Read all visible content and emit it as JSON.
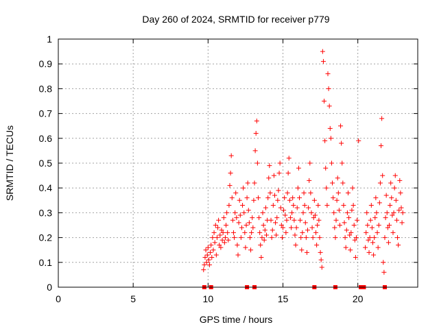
{
  "chart_data": {
    "type": "scatter",
    "title": "Day 260 of 2024, SRMTID for receiver p779",
    "xlabel": "GPS time / hours",
    "ylabel": "SRMTID / TECUs",
    "xlim": [
      0,
      24
    ],
    "ylim": [
      0,
      1
    ],
    "xticks": [
      0,
      5,
      10,
      15,
      20
    ],
    "xtick_labels": [
      "0",
      "5",
      "10",
      "15",
      "20"
    ],
    "yticks": [
      0,
      0.1,
      0.2,
      0.3,
      0.4,
      0.5,
      0.6,
      0.7,
      0.8,
      0.9,
      1
    ],
    "ytick_labels": [
      "0",
      "0.1",
      "0.2",
      "0.3",
      "0.4",
      "0.5",
      "0.6",
      "0.7",
      "0.8",
      "0.9",
      "1"
    ],
    "grid": true,
    "marker": "+",
    "color": "#ff0000",
    "series": [
      {
        "name": "SRMTID",
        "points": [
          [
            9.7,
            0.07
          ],
          [
            9.75,
            0.09
          ],
          [
            9.8,
            0.12
          ],
          [
            9.85,
            0.15
          ],
          [
            9.9,
            0.1
          ],
          [
            9.95,
            0.13
          ],
          [
            10.0,
            0.16
          ],
          [
            10.05,
            0.11
          ],
          [
            10.1,
            0.09
          ],
          [
            10.15,
            0.14
          ],
          [
            10.2,
            0.17
          ],
          [
            10.25,
            0.12
          ],
          [
            10.3,
            0.2
          ],
          [
            10.35,
            0.15
          ],
          [
            10.4,
            0.22
          ],
          [
            10.45,
            0.18
          ],
          [
            10.5,
            0.25
          ],
          [
            10.55,
            0.13
          ],
          [
            10.6,
            0.2
          ],
          [
            10.65,
            0.24
          ],
          [
            10.7,
            0.27
          ],
          [
            10.75,
            0.17
          ],
          [
            10.8,
            0.21
          ],
          [
            10.85,
            0.16
          ],
          [
            10.9,
            0.23
          ],
          [
            10.95,
            0.19
          ],
          [
            11.0,
            0.22
          ],
          [
            11.05,
            0.28
          ],
          [
            11.1,
            0.18
          ],
          [
            11.15,
            0.2
          ],
          [
            11.2,
            0.25
          ],
          [
            11.25,
            0.3
          ],
          [
            11.3,
            0.22
          ],
          [
            11.35,
            0.19
          ],
          [
            11.4,
            0.33
          ],
          [
            11.45,
            0.41
          ],
          [
            11.5,
            0.46
          ],
          [
            11.55,
            0.53
          ],
          [
            11.6,
            0.36
          ],
          [
            11.65,
            0.27
          ],
          [
            11.7,
            0.22
          ],
          [
            11.75,
            0.2
          ],
          [
            11.8,
            0.3
          ],
          [
            11.85,
            0.38
          ],
          [
            11.9,
            0.28
          ],
          [
            11.95,
            0.17
          ],
          [
            12.0,
            0.13
          ],
          [
            12.05,
            0.26
          ],
          [
            12.1,
            0.35
          ],
          [
            12.15,
            0.29
          ],
          [
            12.2,
            0.2
          ],
          [
            12.25,
            0.24
          ],
          [
            12.3,
            0.33
          ],
          [
            12.35,
            0.4
          ],
          [
            12.4,
            0.3
          ],
          [
            12.45,
            0.22
          ],
          [
            12.5,
            0.16
          ],
          [
            12.55,
            0.25
          ],
          [
            12.6,
            0.36
          ],
          [
            12.65,
            0.42
          ],
          [
            12.7,
            0.31
          ],
          [
            12.75,
            0.26
          ],
          [
            12.8,
            0.2
          ],
          [
            12.85,
            0.15
          ],
          [
            12.9,
            0.22
          ],
          [
            12.95,
            0.28
          ],
          [
            13.0,
            0.24
          ],
          [
            13.05,
            0.35
          ],
          [
            13.1,
            0.42
          ],
          [
            13.15,
            0.55
          ],
          [
            13.2,
            0.62
          ],
          [
            13.25,
            0.67
          ],
          [
            13.3,
            0.5
          ],
          [
            13.35,
            0.36
          ],
          [
            13.4,
            0.28
          ],
          [
            13.45,
            0.22
          ],
          [
            13.5,
            0.17
          ],
          [
            13.55,
            0.12
          ],
          [
            13.6,
            0.2
          ],
          [
            13.65,
            0.3
          ],
          [
            13.7,
            0.25
          ],
          [
            13.75,
            0.19
          ],
          [
            13.8,
            0.23
          ],
          [
            13.85,
            0.32
          ],
          [
            13.9,
            0.21
          ],
          [
            13.95,
            0.27
          ],
          [
            14.0,
            0.36
          ],
          [
            14.05,
            0.44
          ],
          [
            14.1,
            0.49
          ],
          [
            14.15,
            0.38
          ],
          [
            14.2,
            0.27
          ],
          [
            14.25,
            0.2
          ],
          [
            14.3,
            0.23
          ],
          [
            14.35,
            0.33
          ],
          [
            14.4,
            0.45
          ],
          [
            14.45,
            0.37
          ],
          [
            14.5,
            0.26
          ],
          [
            14.55,
            0.21
          ],
          [
            14.6,
            0.28
          ],
          [
            14.65,
            0.35
          ],
          [
            14.7,
            0.39
          ],
          [
            14.75,
            0.46
          ],
          [
            14.8,
            0.5
          ],
          [
            14.85,
            0.32
          ],
          [
            14.9,
            0.25
          ],
          [
            14.95,
            0.2
          ],
          [
            15.0,
            0.24
          ],
          [
            15.05,
            0.31
          ],
          [
            15.1,
            0.36
          ],
          [
            15.15,
            0.29
          ],
          [
            15.2,
            0.22
          ],
          [
            15.25,
            0.27
          ],
          [
            15.3,
            0.38
          ],
          [
            15.35,
            0.46
          ],
          [
            15.4,
            0.52
          ],
          [
            15.45,
            0.35
          ],
          [
            15.5,
            0.28
          ],
          [
            15.55,
            0.24
          ],
          [
            15.6,
            0.3
          ],
          [
            15.65,
            0.36
          ],
          [
            15.7,
            0.33
          ],
          [
            15.75,
            0.27
          ],
          [
            15.8,
            0.21
          ],
          [
            15.85,
            0.17
          ],
          [
            15.9,
            0.24
          ],
          [
            15.95,
            0.32
          ],
          [
            16.0,
            0.4
          ],
          [
            16.05,
            0.48
          ],
          [
            16.1,
            0.36
          ],
          [
            16.15,
            0.27
          ],
          [
            16.2,
            0.2
          ],
          [
            16.25,
            0.15
          ],
          [
            16.3,
            0.22
          ],
          [
            16.35,
            0.3
          ],
          [
            16.4,
            0.38
          ],
          [
            16.45,
            0.33
          ],
          [
            16.5,
            0.26
          ],
          [
            16.55,
            0.2
          ],
          [
            16.6,
            0.14
          ],
          [
            16.65,
            0.23
          ],
          [
            16.7,
            0.32
          ],
          [
            16.75,
            0.43
          ],
          [
            16.8,
            0.5
          ],
          [
            16.85,
            0.38
          ],
          [
            16.9,
            0.3
          ],
          [
            16.95,
            0.24
          ],
          [
            17.0,
            0.2
          ],
          [
            17.05,
            0.28
          ],
          [
            17.1,
            0.35
          ],
          [
            17.15,
            0.29
          ],
          [
            17.2,
            0.22
          ],
          [
            17.25,
            0.17
          ],
          [
            17.3,
            0.25
          ],
          [
            17.35,
            0.33
          ],
          [
            17.4,
            0.27
          ],
          [
            17.45,
            0.2
          ],
          [
            17.5,
            0.14
          ],
          [
            17.55,
            0.11
          ],
          [
            17.6,
            0.08
          ],
          [
            17.65,
            0.95
          ],
          [
            17.7,
            0.91
          ],
          [
            17.75,
            0.75
          ],
          [
            17.8,
            0.59
          ],
          [
            17.85,
            0.48
          ],
          [
            17.9,
            0.4
          ],
          [
            17.95,
            0.33
          ],
          [
            18.0,
            0.86
          ],
          [
            18.05,
            0.8
          ],
          [
            18.1,
            0.73
          ],
          [
            18.15,
            0.64
          ],
          [
            18.2,
            0.6
          ],
          [
            18.25,
            0.5
          ],
          [
            18.3,
            0.42
          ],
          [
            18.35,
            0.36
          ],
          [
            18.4,
            0.3
          ],
          [
            18.45,
            0.24
          ],
          [
            18.5,
            0.2
          ],
          [
            18.55,
            0.27
          ],
          [
            18.6,
            0.35
          ],
          [
            18.65,
            0.44
          ],
          [
            18.7,
            0.38
          ],
          [
            18.75,
            0.31
          ],
          [
            18.8,
            0.25
          ],
          [
            18.85,
            0.65
          ],
          [
            18.9,
            0.58
          ],
          [
            18.95,
            0.5
          ],
          [
            19.0,
            0.42
          ],
          [
            19.05,
            0.33
          ],
          [
            19.1,
            0.26
          ],
          [
            19.15,
            0.2
          ],
          [
            19.2,
            0.16
          ],
          [
            19.25,
            0.23
          ],
          [
            19.3,
            0.3
          ],
          [
            19.35,
            0.38
          ],
          [
            19.4,
            0.28
          ],
          [
            19.45,
            0.21
          ],
          [
            19.5,
            0.15
          ],
          [
            19.55,
            0.22
          ],
          [
            19.6,
            0.31
          ],
          [
            19.65,
            0.4
          ],
          [
            19.7,
            0.33
          ],
          [
            19.75,
            0.25
          ],
          [
            19.8,
            0.19
          ],
          [
            19.85,
            0.12
          ],
          [
            19.9,
            0.2
          ],
          [
            19.95,
            0.27
          ],
          [
            20.05,
            0.59
          ],
          [
            20.5,
            0.16
          ],
          [
            20.55,
            0.22
          ],
          [
            20.6,
            0.3
          ],
          [
            20.65,
            0.25
          ],
          [
            20.7,
            0.19
          ],
          [
            20.75,
            0.14
          ],
          [
            20.8,
            0.2
          ],
          [
            20.85,
            0.27
          ],
          [
            20.9,
            0.33
          ],
          [
            20.95,
            0.24
          ],
          [
            21.0,
            0.18
          ],
          [
            21.05,
            0.13
          ],
          [
            21.1,
            0.2
          ],
          [
            21.15,
            0.28
          ],
          [
            21.2,
            0.36
          ],
          [
            21.25,
            0.3
          ],
          [
            21.3,
            0.22
          ],
          [
            21.35,
            0.16
          ],
          [
            21.4,
            0.25
          ],
          [
            21.45,
            0.34
          ],
          [
            21.5,
            0.42
          ],
          [
            21.55,
            0.57
          ],
          [
            21.6,
            0.68
          ],
          [
            21.65,
            0.45
          ],
          [
            21.7,
            0.1
          ],
          [
            21.75,
            0.06
          ],
          [
            21.8,
            0.2
          ],
          [
            21.85,
            0.28
          ],
          [
            21.9,
            0.37
          ],
          [
            21.95,
            0.3
          ],
          [
            22.0,
            0.24
          ],
          [
            22.05,
            0.18
          ],
          [
            22.1,
            0.25
          ],
          [
            22.15,
            0.33
          ],
          [
            22.2,
            0.42
          ],
          [
            22.25,
            0.36
          ],
          [
            22.3,
            0.29
          ],
          [
            22.35,
            0.22
          ],
          [
            22.4,
            0.3
          ],
          [
            22.45,
            0.4
          ],
          [
            22.5,
            0.45
          ],
          [
            22.55,
            0.35
          ],
          [
            22.6,
            0.27
          ],
          [
            22.65,
            0.2
          ],
          [
            22.7,
            0.17
          ],
          [
            22.75,
            0.31
          ],
          [
            22.8,
            0.43
          ],
          [
            22.85,
            0.38
          ],
          [
            22.9,
            0.32
          ],
          [
            22.95,
            0.26
          ],
          [
            23.0,
            0.3
          ]
        ]
      }
    ],
    "zero_markers_x": [
      9.75,
      10.2,
      12.6,
      13.1,
      17.1,
      18.5,
      20.2,
      20.4,
      21.8
    ]
  }
}
